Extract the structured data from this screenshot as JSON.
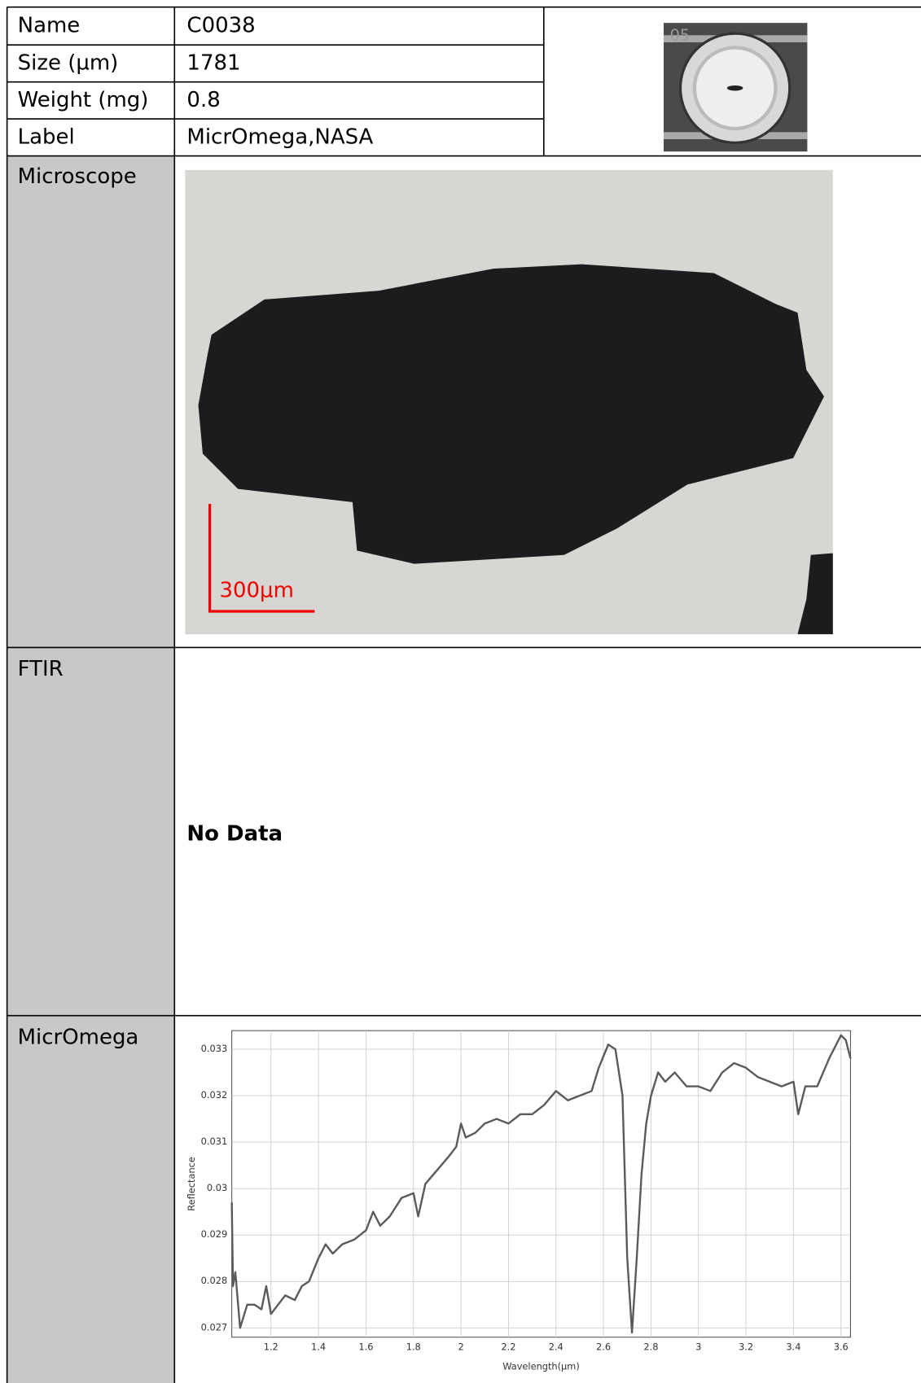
{
  "table": {
    "rows": [
      [
        "Name",
        "C0038"
      ],
      [
        "Size (µm)",
        "1781"
      ],
      [
        "Weight (mg)",
        "0.8"
      ],
      [
        "Label",
        "MicrOmega,NASA"
      ]
    ],
    "thumbnail_label": "05",
    "microscope": {
      "label": "Microscope",
      "scale_bar": "300μm"
    },
    "ftir": {
      "label": "FTIR",
      "text": "No Data"
    },
    "micromega": {
      "label": "MicrOmega"
    }
  },
  "chart_data": {
    "type": "line",
    "x_label": "Wavelength(µm)",
    "y_label": "Reflectance",
    "x": [
      1.035,
      1.04,
      1.05,
      1.07,
      1.1,
      1.13,
      1.16,
      1.18,
      1.2,
      1.23,
      1.26,
      1.3,
      1.33,
      1.36,
      1.4,
      1.43,
      1.46,
      1.5,
      1.55,
      1.6,
      1.63,
      1.66,
      1.7,
      1.75,
      1.8,
      1.82,
      1.85,
      1.9,
      1.95,
      1.98,
      2.0,
      2.02,
      2.06,
      2.1,
      2.15,
      2.2,
      2.25,
      2.3,
      2.35,
      2.4,
      2.45,
      2.5,
      2.55,
      2.58,
      2.62,
      2.65,
      2.68,
      2.7,
      2.72,
      2.74,
      2.76,
      2.78,
      2.8,
      2.83,
      2.86,
      2.9,
      2.95,
      3.0,
      3.05,
      3.1,
      3.15,
      3.2,
      3.25,
      3.3,
      3.35,
      3.4,
      3.42,
      3.45,
      3.5,
      3.55,
      3.6,
      3.62,
      3.64
    ],
    "series": [
      {
        "name": "Reflectance",
        "color": "#5a5a5a",
        "values": [
          0.0297,
          0.0279,
          0.0282,
          0.027,
          0.0275,
          0.0275,
          0.0274,
          0.0279,
          0.0273,
          0.0275,
          0.0277,
          0.0276,
          0.0279,
          0.028,
          0.0285,
          0.0288,
          0.0286,
          0.0288,
          0.0289,
          0.0291,
          0.0295,
          0.0292,
          0.0294,
          0.0298,
          0.0299,
          0.0294,
          0.0301,
          0.0304,
          0.0307,
          0.0309,
          0.0314,
          0.0311,
          0.0312,
          0.0314,
          0.0315,
          0.0314,
          0.0316,
          0.0316,
          0.0318,
          0.0321,
          0.0319,
          0.032,
          0.0321,
          0.0326,
          0.0331,
          0.033,
          0.032,
          0.0285,
          0.0269,
          0.0285,
          0.0303,
          0.0314,
          0.032,
          0.0325,
          0.0323,
          0.0325,
          0.0322,
          0.0322,
          0.0321,
          0.0325,
          0.0327,
          0.0326,
          0.0324,
          0.0323,
          0.0322,
          0.0323,
          0.0316,
          0.0322,
          0.0322,
          0.0328,
          0.0333,
          0.0332,
          0.0328
        ]
      }
    ],
    "xlim": [
      1.035,
      3.64
    ],
    "ylim": [
      0.0268,
      0.0334
    ],
    "xticks": [
      1.2,
      1.4,
      1.6,
      1.8,
      2,
      2.2,
      2.4,
      2.6,
      2.8,
      3,
      3.2,
      3.4,
      3.6
    ],
    "yticks": [
      0.027,
      0.028,
      0.029,
      0.03,
      0.031,
      0.032,
      0.033
    ],
    "grid": true
  }
}
